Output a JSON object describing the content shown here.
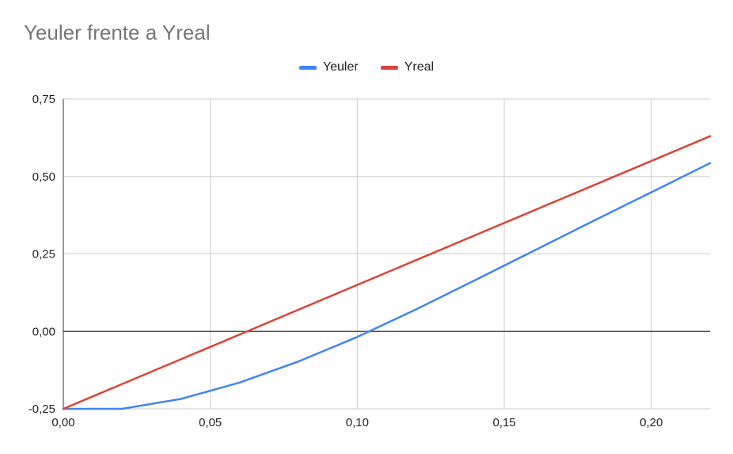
{
  "chart_data": {
    "type": "line",
    "title": "Yeuler frente a Yreal",
    "xlabel": "",
    "ylabel": "",
    "xlim": [
      0,
      0.22
    ],
    "ylim": [
      -0.25,
      0.75
    ],
    "x_ticks": [
      "0,00",
      "0,05",
      "0,10",
      "0,15",
      "0,20"
    ],
    "x_tick_values": [
      0,
      0.05,
      0.1,
      0.15,
      0.2
    ],
    "y_ticks": [
      "-0,25",
      "0,00",
      "0,25",
      "0,50",
      "0,75"
    ],
    "y_tick_values": [
      -0.25,
      0,
      0.25,
      0.5,
      0.75
    ],
    "grid": true,
    "legend_position": "top-center",
    "series": [
      {
        "name": "Yeuler",
        "color": "#4285F4",
        "x": [
          0,
          0.02,
          0.04,
          0.06,
          0.08,
          0.1,
          0.12,
          0.14,
          0.16,
          0.18,
          0.2,
          0.22
        ],
        "y": [
          -0.25,
          -0.25,
          -0.218,
          -0.165,
          -0.097,
          -0.018,
          0.071,
          0.165,
          0.26,
          0.355,
          0.449,
          0.543
        ]
      },
      {
        "name": "Yreal",
        "color": "#DB4437",
        "x": [
          0,
          0.22
        ],
        "y": [
          -0.25,
          0.63
        ]
      }
    ]
  }
}
